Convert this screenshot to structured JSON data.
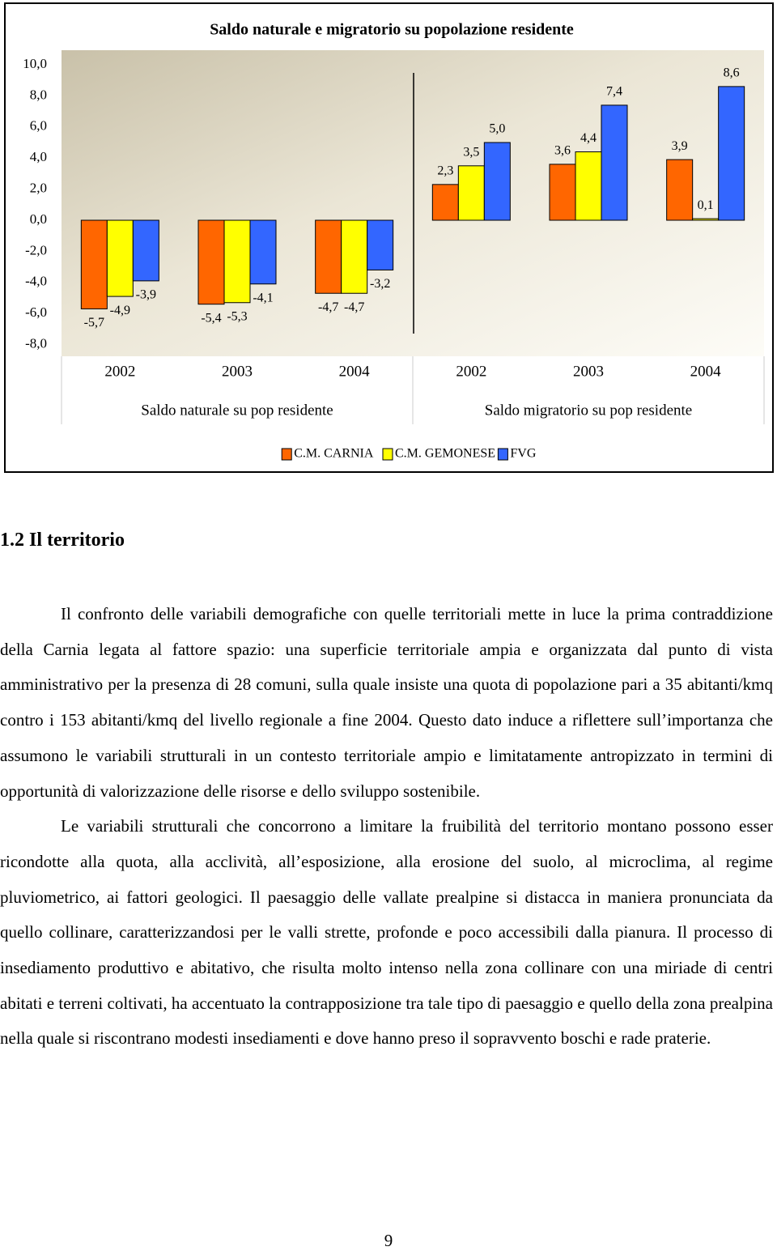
{
  "chart_data": {
    "type": "bar",
    "title": "Saldo naturale e migratorio su popolazione residente",
    "categories": [
      "2002",
      "2003",
      "2004",
      "2002",
      "2003",
      "2004"
    ],
    "group_labels": [
      "Saldo naturale su pop residente",
      "Saldo migratorio su pop residente"
    ],
    "series": [
      {
        "name": "C.M. CARNIA",
        "color": "#FF6600",
        "values": [
          -5.7,
          -5.4,
          -4.7,
          2.3,
          3.6,
          3.9
        ],
        "value_labels": [
          "-5,7",
          "-5,4",
          "-4,7",
          "2,3",
          "3,6",
          "3,9"
        ]
      },
      {
        "name": "C.M. GEMONESE",
        "color": "#FFFF00",
        "values": [
          -4.9,
          -5.3,
          -4.7,
          3.5,
          4.4,
          0.1
        ],
        "value_labels": [
          "-4,9",
          "-5,3",
          "-4,7",
          "3,5",
          "4,4",
          "0,1"
        ]
      },
      {
        "name": "FVG",
        "color": "#3366FF",
        "values": [
          -3.9,
          -4.1,
          -3.2,
          5.0,
          7.4,
          8.6
        ],
        "value_labels": [
          "-3,9",
          "-4,1",
          "-3,2",
          "5,0",
          "7,4",
          "8,6"
        ]
      }
    ],
    "ylim": [
      -8,
      10
    ],
    "yticks": [
      {
        "value": 10,
        "label": "10,0"
      },
      {
        "value": 8,
        "label": "8,0"
      },
      {
        "value": 6,
        "label": "6,0"
      },
      {
        "value": 4,
        "label": "4,0"
      },
      {
        "value": 2,
        "label": "2,0"
      },
      {
        "value": 0,
        "label": "0,0"
      },
      {
        "value": -2,
        "label": "-2,0"
      },
      {
        "value": -4,
        "label": "-4,0"
      },
      {
        "value": -6,
        "label": "-6,0"
      },
      {
        "value": -8,
        "label": "-8,0"
      }
    ],
    "grid": false,
    "legend": "bottom"
  },
  "heading": "1.2 Il territorio",
  "paragraphs": [
    "Il confronto delle variabili demografiche con quelle territoriali mette in luce la prima contraddizione della Carnia legata al fattore spazio: una superficie territoriale ampia e organizzata dal punto di vista amministrativo per la presenza di 28 comuni, sulla quale insiste una quota di popolazione pari a 35 abitanti/kmq contro i 153 abitanti/kmq del livello regionale a fine 2004. Questo dato induce a riflettere sull’importanza che assumono le variabili strutturali in un contesto territoriale ampio e limitatamente antropizzato in termini di opportunità di valorizzazione delle risorse e dello sviluppo sostenibile.",
    "Le variabili strutturali che concorrono a limitare la fruibilità del territorio montano possono esser ricondotte alla quota, alla acclività, all’esposizione, alla erosione del suolo, al microclima, al regime pluviometrico, ai fattori geologici. Il paesaggio delle vallate prealpine si distacca in maniera pronunciata da quello collinare, caratterizzandosi per le valli strette, profonde e poco accessibili dalla pianura. Il processo di insediamento produttivo e abitativo, che risulta molto intenso nella zona collinare con una miriade di centri abitati e terreni coltivati, ha accentuato la contrapposizione tra tale tipo di paesaggio e quello della zona prealpina nella quale si riscontrano modesti insediamenti e dove hanno preso il sopravvento boschi e rade praterie."
  ],
  "page_number": "9"
}
